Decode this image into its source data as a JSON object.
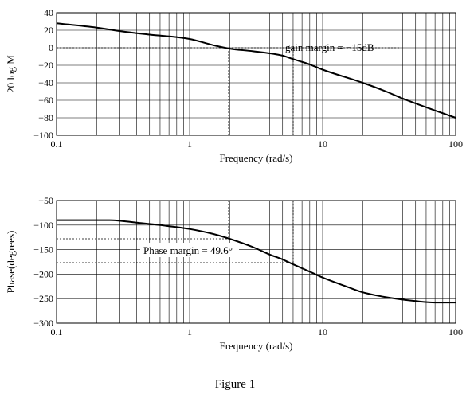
{
  "figure": {
    "caption": "Figure 1"
  },
  "chart_data": [
    {
      "type": "line",
      "xscale": "log",
      "xlabel": "Frequency (rad/s)",
      "ylabel": "20 log M",
      "xlim": [
        0.1,
        100
      ],
      "ylim": [
        -100,
        40
      ],
      "xticks": [
        0.1,
        1,
        10,
        100
      ],
      "xtick_labels": [
        "0.1",
        "1",
        "10",
        "100"
      ],
      "yticks": [
        40,
        20,
        0,
        -20,
        -40,
        -60,
        -80,
        -100
      ],
      "ytick_labels": [
        "40",
        "20",
        "0",
        "−20",
        "−40",
        "−60",
        "−80",
        "−100"
      ],
      "grid": true,
      "x": [
        0.1,
        0.2,
        0.3,
        0.5,
        1,
        1.5,
        2,
        3,
        5,
        6,
        8,
        10,
        20,
        30,
        40,
        60,
        100
      ],
      "y": [
        28,
        23,
        19,
        15,
        10,
        3,
        -1,
        -4,
        -9,
        -13,
        -19,
        -25,
        -40,
        -50,
        -58,
        -68,
        -80
      ],
      "annotation": {
        "text": "gain margin = −15dB"
      }
    },
    {
      "type": "line",
      "xscale": "log",
      "xlabel": "Frequency (rad/s)",
      "ylabel": "Phase(degrees)",
      "xlim": [
        0.1,
        100
      ],
      "ylim": [
        -300,
        -50
      ],
      "xticks": [
        0.1,
        1,
        10,
        100
      ],
      "xtick_labels": [
        "0.1",
        "1",
        "10",
        "100"
      ],
      "yticks": [
        -50,
        -100,
        -150,
        -200,
        -250,
        -300
      ],
      "ytick_labels": [
        "−50",
        "−100",
        "−150",
        "−200",
        "−250",
        "−300"
      ],
      "grid": true,
      "x": [
        0.1,
        0.15,
        0.25,
        0.4,
        0.6,
        1,
        1.5,
        2,
        3,
        4,
        5,
        6,
        8,
        10,
        15,
        20,
        30,
        50,
        70,
        100
      ],
      "y": [
        -90,
        -90,
        -90,
        -95,
        -100,
        -108,
        -118,
        -128,
        -145,
        -160,
        -170,
        -180,
        -195,
        -207,
        -225,
        -237,
        -247,
        -255,
        -258,
        -258
      ],
      "annotation": {
        "text": "Phase margin = 49.6°"
      }
    }
  ]
}
